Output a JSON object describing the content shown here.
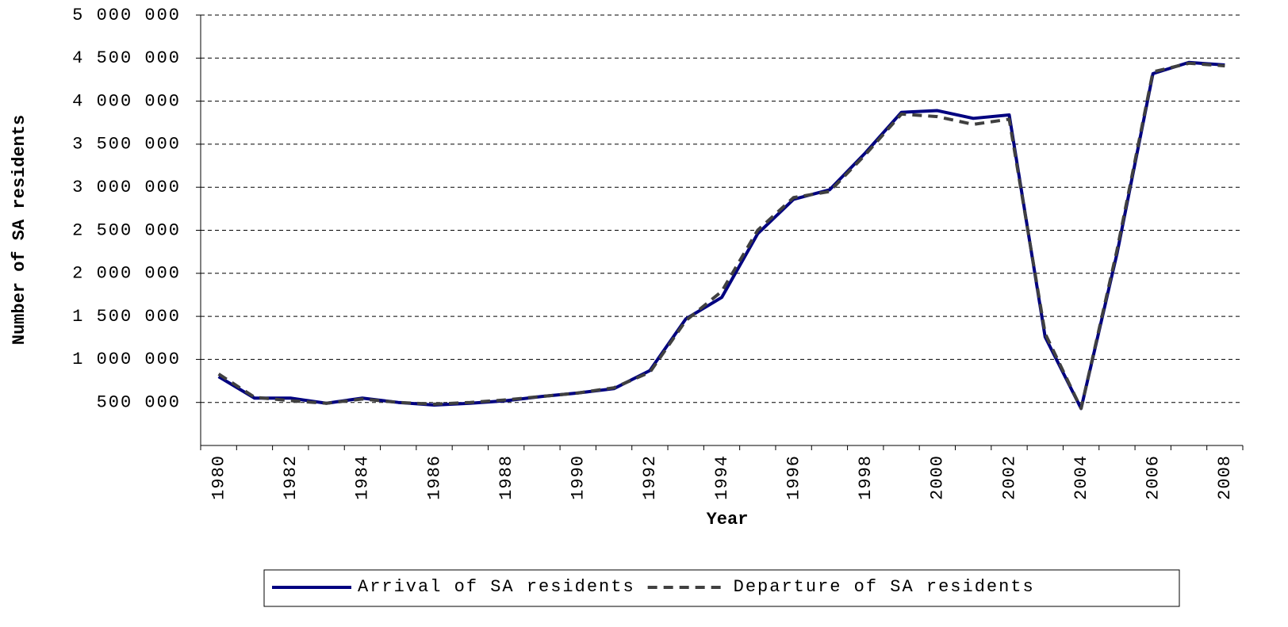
{
  "chart_data": {
    "type": "line",
    "x_label": "Year",
    "y_label": "Number of SA residents",
    "categories": [
      "1980",
      null,
      "1982",
      null,
      "1984",
      null,
      "1986",
      null,
      "1988",
      null,
      "1990",
      null,
      "1992",
      null,
      "1994",
      null,
      "1996",
      null,
      "1998",
      null,
      "2000",
      null,
      "2002",
      null,
      "2004",
      null,
      "2006",
      null,
      "2008"
    ],
    "series": [
      {
        "name": "Arrival of SA residents",
        "color": "#000080",
        "dashed": false,
        "values": [
          800000,
          550000,
          550000,
          490000,
          550000,
          500000,
          470000,
          490000,
          520000,
          570000,
          610000,
          660000,
          870000,
          1470000,
          1720000,
          2460000,
          2860000,
          2970000,
          3400000,
          3870000,
          3890000,
          3800000,
          3840000,
          1260000,
          430000,
          2230000,
          4320000,
          4450000,
          4420000
        ]
      },
      {
        "name": "Departure of SA residents",
        "color": "#404040",
        "dashed": true,
        "values": [
          830000,
          560000,
          520000,
          490000,
          540000,
          500000,
          480000,
          500000,
          530000,
          570000,
          610000,
          670000,
          850000,
          1450000,
          1790000,
          2500000,
          2880000,
          2950000,
          3380000,
          3850000,
          3820000,
          3730000,
          3790000,
          1300000,
          430000,
          2270000,
          4340000,
          4440000,
          4410000
        ]
      }
    ],
    "ylim": [
      0,
      5000000
    ],
    "yticks": [
      {
        "value": 500000,
        "label": "500 000"
      },
      {
        "value": 1000000,
        "label": "1 000 000"
      },
      {
        "value": 1500000,
        "label": "1 500 000"
      },
      {
        "value": 2000000,
        "label": "2 000 000"
      },
      {
        "value": 2500000,
        "label": "2 500 000"
      },
      {
        "value": 3000000,
        "label": "3 000 000"
      },
      {
        "value": 3500000,
        "label": "3 500 000"
      },
      {
        "value": 4000000,
        "label": "4 000 000"
      },
      {
        "value": 4500000,
        "label": "4 500 000"
      },
      {
        "value": 5000000,
        "label": "5 000 000"
      }
    ],
    "grid": true,
    "legend": "bottom"
  }
}
